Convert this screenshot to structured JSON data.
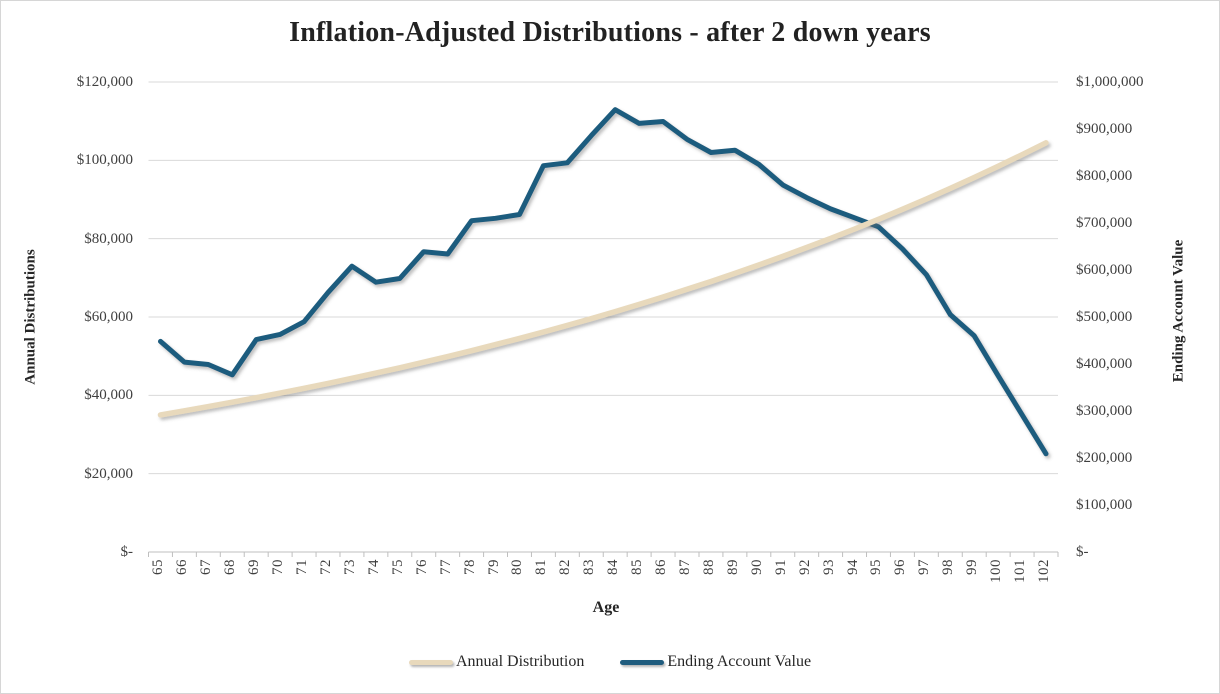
{
  "chart_data": {
    "type": "line",
    "title": "Inflation-Adjusted Distributions - after 2 down years",
    "xlabel": "Age",
    "x": [
      65,
      66,
      67,
      68,
      69,
      70,
      71,
      72,
      73,
      74,
      75,
      76,
      77,
      78,
      79,
      80,
      81,
      82,
      83,
      84,
      85,
      86,
      87,
      88,
      89,
      90,
      91,
      92,
      93,
      94,
      95,
      96,
      97,
      98,
      99,
      100,
      101,
      102
    ],
    "left_axis": {
      "label": "Annual Distributions",
      "min": 0,
      "max": 120000,
      "tick_values": [
        120000,
        100000,
        80000,
        60000,
        40000,
        20000,
        0
      ],
      "tick_labels": [
        "$120,000",
        "$100,000",
        "$80,000",
        "$60,000",
        "$40,000",
        "$20,000",
        "$-"
      ]
    },
    "right_axis": {
      "label": "Ending Account Value",
      "min": 0,
      "max": 1000000,
      "tick_values": [
        1000000,
        900000,
        800000,
        700000,
        600000,
        500000,
        400000,
        300000,
        200000,
        100000,
        0
      ],
      "tick_labels": [
        "$1,000,000",
        "$900,000",
        "$800,000",
        "$700,000",
        "$600,000",
        "$500,000",
        "$400,000",
        "$300,000",
        "$200,000",
        "$100,000",
        "$-"
      ]
    },
    "series": [
      {
        "name": "Ending Account Value",
        "axis": "right",
        "color": "#1F5C7E",
        "stroke_width": 5,
        "values": [
          448000,
          404000,
          399000,
          377000,
          452000,
          463000,
          490000,
          552000,
          608000,
          574000,
          582000,
          639000,
          634000,
          705000,
          710000,
          718000,
          822000,
          828000,
          886000,
          941000,
          912000,
          916000,
          878000,
          850000,
          855000,
          825000,
          781000,
          754000,
          730000,
          711000,
          692000,
          645000,
          590000,
          505000,
          460000,
          375000,
          292000,
          209000
        ]
      },
      {
        "name": "Annual Distribution",
        "axis": "left",
        "color": "#E8D9BC",
        "stroke_width": 5.5,
        "values": [
          35000,
          36050,
          37132,
          38245,
          39393,
          40575,
          41792,
          43046,
          44337,
          45667,
          47037,
          48448,
          49902,
          51399,
          52941,
          54529,
          56165,
          57850,
          59585,
          61373,
          63214,
          65110,
          67064,
          69076,
          71148,
          73282,
          75481,
          77745,
          80078,
          82480,
          84954,
          87503,
          90128,
          92832,
          95617,
          98485,
          101440,
          104483
        ]
      }
    ],
    "legend_position": "bottom",
    "grid": true,
    "gridline_color": "#d9d9d9",
    "axisline_color": "#bfbfbf"
  }
}
